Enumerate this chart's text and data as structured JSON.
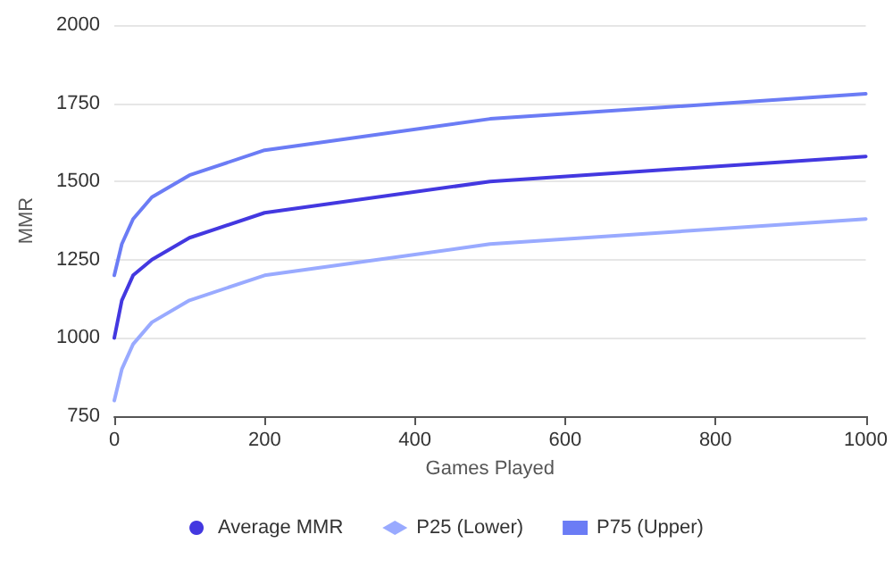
{
  "chart_data": {
    "type": "line",
    "xlabel": "Games Played",
    "ylabel": "MMR",
    "x": [
      0,
      10,
      25,
      50,
      100,
      200,
      500,
      1000
    ],
    "series": [
      {
        "name": "Average MMR",
        "color": "#4338e0",
        "values": [
          1000,
          1120,
          1200,
          1250,
          1320,
          1400,
          1500,
          1580
        ]
      },
      {
        "name": "P25 (Lower)",
        "color": "#99aaff",
        "values": [
          800,
          900,
          980,
          1050,
          1120,
          1200,
          1300,
          1380
        ]
      },
      {
        "name": "P75 (Upper)",
        "color": "#6b7cf5",
        "values": [
          1200,
          1300,
          1380,
          1450,
          1520,
          1600,
          1700,
          1780
        ]
      }
    ],
    "xlim": [
      0,
      1000
    ],
    "xticks": [
      0,
      200,
      400,
      600,
      800,
      1000
    ],
    "ylim": [
      750,
      2000
    ],
    "yticks": [
      750,
      1000,
      1250,
      1500,
      1750,
      2000
    ],
    "grid": "y",
    "legend": "bottom",
    "marker": "none",
    "line_style": "solid"
  }
}
